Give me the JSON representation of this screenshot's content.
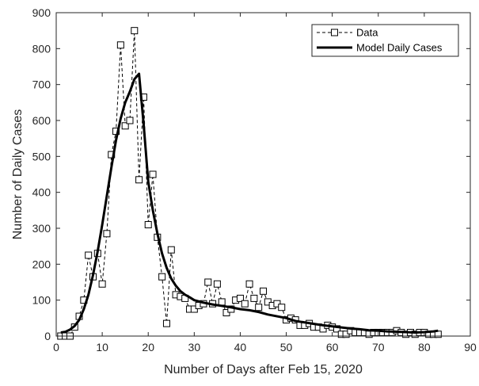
{
  "chart_data": {
    "type": "line",
    "xlabel": "Number of Days after Feb 15, 2020",
    "ylabel": "Number of Daily Cases",
    "xlim": [
      0,
      90
    ],
    "ylim": [
      0,
      900
    ],
    "xticks": [
      0,
      10,
      20,
      30,
      40,
      50,
      60,
      70,
      80,
      90
    ],
    "yticks": [
      0,
      100,
      200,
      300,
      400,
      500,
      600,
      700,
      800,
      900
    ],
    "grid": false,
    "legend_position": "top-right",
    "series": [
      {
        "name": "Data",
        "style": "dashed line with square markers",
        "color": "#000000",
        "x": [
          1,
          2,
          3,
          4,
          5,
          6,
          7,
          8,
          9,
          10,
          11,
          12,
          13,
          14,
          15,
          16,
          17,
          18,
          19,
          20,
          21,
          22,
          23,
          24,
          25,
          26,
          27,
          28,
          29,
          30,
          31,
          32,
          33,
          34,
          35,
          36,
          37,
          38,
          39,
          40,
          41,
          42,
          43,
          44,
          45,
          46,
          47,
          48,
          49,
          50,
          51,
          52,
          53,
          54,
          55,
          56,
          57,
          58,
          59,
          60,
          61,
          62,
          63,
          64,
          65,
          66,
          67,
          68,
          69,
          70,
          71,
          72,
          73,
          74,
          75,
          76,
          77,
          78,
          79,
          80,
          81,
          82,
          83
        ],
        "y": [
          0,
          0,
          0,
          25,
          55,
          100,
          225,
          165,
          230,
          145,
          285,
          505,
          570,
          810,
          585,
          600,
          850,
          435,
          665,
          310,
          450,
          275,
          165,
          35,
          240,
          115,
          110,
          105,
          75,
          75,
          85,
          90,
          150,
          90,
          145,
          95,
          65,
          75,
          100,
          105,
          90,
          145,
          105,
          80,
          125,
          95,
          85,
          90,
          80,
          45,
          50,
          45,
          30,
          30,
          35,
          25,
          25,
          20,
          30,
          25,
          20,
          5,
          5,
          15,
          10,
          10,
          10,
          5,
          10,
          10,
          10,
          10,
          10,
          15,
          10,
          5,
          10,
          5,
          10,
          10,
          5,
          5,
          5
        ]
      },
      {
        "name": "Model Daily Cases",
        "style": "solid thick line",
        "color": "#000000",
        "x": [
          1,
          2,
          3,
          4,
          5,
          6,
          7,
          8,
          9,
          10,
          11,
          12,
          13,
          14,
          15,
          16,
          17,
          18,
          19,
          20,
          21,
          22,
          23,
          24,
          25,
          26,
          27,
          28,
          29,
          30,
          32,
          34,
          36,
          38,
          40,
          42,
          44,
          46,
          48,
          50,
          52,
          54,
          56,
          58,
          60,
          62,
          64,
          66,
          68,
          70,
          72,
          74,
          76,
          78,
          80,
          82,
          83
        ],
        "y": [
          10,
          12,
          18,
          28,
          45,
          75,
          115,
          170,
          235,
          310,
          390,
          470,
          545,
          605,
          650,
          680,
          715,
          730,
          590,
          430,
          350,
          285,
          230,
          190,
          160,
          140,
          125,
          115,
          108,
          100,
          93,
          88,
          84,
          80,
          75,
          72,
          67,
          60,
          55,
          50,
          42,
          38,
          34,
          30,
          27,
          24,
          21,
          19,
          16,
          15,
          13,
          12,
          11,
          10,
          11,
          13,
          15
        ]
      }
    ]
  }
}
